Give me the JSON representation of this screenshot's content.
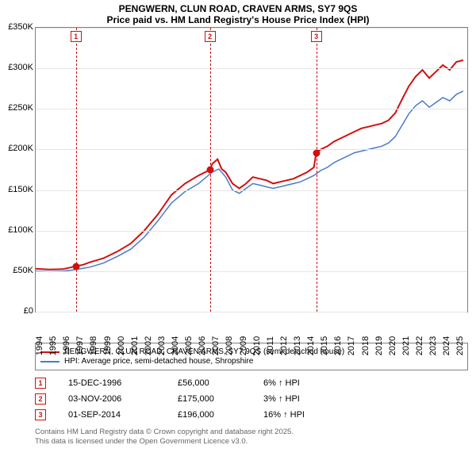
{
  "title": {
    "line1": "PENGWERN, CLUN ROAD, CRAVEN ARMS, SY7 9QS",
    "line2": "Price paid vs. HM Land Registry's House Price Index (HPI)"
  },
  "chart": {
    "type": "line",
    "background_color": "#ffffff",
    "grid_color": "#e5e5e5",
    "border_color": "#808080",
    "xlim": [
      1994,
      2025.8
    ],
    "ylim": [
      0,
      350000
    ],
    "yticks": [
      0,
      50000,
      100000,
      150000,
      200000,
      250000,
      300000,
      350000
    ],
    "ytick_labels": [
      "£0",
      "£50K",
      "£100K",
      "£150K",
      "£200K",
      "£250K",
      "£300K",
      "£350K"
    ],
    "xticks": [
      1994,
      1995,
      1996,
      1997,
      1998,
      1999,
      2000,
      2001,
      2002,
      2003,
      2004,
      2005,
      2006,
      2007,
      2008,
      2009,
      2010,
      2011,
      2012,
      2013,
      2014,
      2015,
      2016,
      2017,
      2018,
      2019,
      2020,
      2021,
      2022,
      2023,
      2024,
      2025
    ],
    "series": [
      {
        "name": "price_paid",
        "label": "PENGWERN, CLUN ROAD, CRAVEN ARMS, SY7 9QS (semi-detached house)",
        "color": "#d01010",
        "line_width": 2,
        "data": [
          [
            1994,
            53000
          ],
          [
            1995,
            52000
          ],
          [
            1996,
            52500
          ],
          [
            1996.96,
            56000
          ],
          [
            1997.5,
            58000
          ],
          [
            1998,
            61000
          ],
          [
            1999,
            66000
          ],
          [
            2000,
            74000
          ],
          [
            2001,
            84000
          ],
          [
            2002,
            100000
          ],
          [
            2003,
            120000
          ],
          [
            2004,
            144000
          ],
          [
            2005,
            158000
          ],
          [
            2006,
            168000
          ],
          [
            2006.84,
            175000
          ],
          [
            2007,
            182000
          ],
          [
            2007.4,
            188000
          ],
          [
            2007.7,
            176000
          ],
          [
            2008,
            172000
          ],
          [
            2008.5,
            158000
          ],
          [
            2009,
            152000
          ],
          [
            2009.5,
            158000
          ],
          [
            2010,
            166000
          ],
          [
            2010.5,
            164000
          ],
          [
            2011,
            162000
          ],
          [
            2011.5,
            158000
          ],
          [
            2012,
            160000
          ],
          [
            2012.5,
            162000
          ],
          [
            2013,
            164000
          ],
          [
            2013.5,
            168000
          ],
          [
            2014,
            172000
          ],
          [
            2014.5,
            178000
          ],
          [
            2014.67,
            196000
          ],
          [
            2015,
            200000
          ],
          [
            2015.5,
            204000
          ],
          [
            2016,
            210000
          ],
          [
            2016.5,
            214000
          ],
          [
            2017,
            218000
          ],
          [
            2017.5,
            222000
          ],
          [
            2018,
            226000
          ],
          [
            2018.5,
            228000
          ],
          [
            2019,
            230000
          ],
          [
            2019.5,
            232000
          ],
          [
            2020,
            236000
          ],
          [
            2020.5,
            245000
          ],
          [
            2021,
            262000
          ],
          [
            2021.5,
            278000
          ],
          [
            2022,
            290000
          ],
          [
            2022.5,
            298000
          ],
          [
            2023,
            288000
          ],
          [
            2023.5,
            296000
          ],
          [
            2024,
            304000
          ],
          [
            2024.5,
            298000
          ],
          [
            2025,
            308000
          ],
          [
            2025.5,
            310000
          ]
        ]
      },
      {
        "name": "hpi",
        "label": "HPI: Average price, semi-detached house, Shropshire",
        "color": "#4a7bc8",
        "line_width": 1.5,
        "data": [
          [
            1994,
            50000
          ],
          [
            1995,
            49500
          ],
          [
            1996,
            50000
          ],
          [
            1997,
            52000
          ],
          [
            1998,
            55000
          ],
          [
            1999,
            60000
          ],
          [
            2000,
            68000
          ],
          [
            2001,
            77000
          ],
          [
            2002,
            92000
          ],
          [
            2003,
            112000
          ],
          [
            2004,
            134000
          ],
          [
            2005,
            148000
          ],
          [
            2006,
            158000
          ],
          [
            2007,
            172000
          ],
          [
            2007.5,
            176000
          ],
          [
            2008,
            166000
          ],
          [
            2008.5,
            150000
          ],
          [
            2009,
            146000
          ],
          [
            2009.5,
            152000
          ],
          [
            2010,
            158000
          ],
          [
            2010.5,
            156000
          ],
          [
            2011,
            154000
          ],
          [
            2011.5,
            152000
          ],
          [
            2012,
            154000
          ],
          [
            2013,
            158000
          ],
          [
            2013.5,
            160000
          ],
          [
            2014,
            164000
          ],
          [
            2014.5,
            168000
          ],
          [
            2015,
            174000
          ],
          [
            2015.5,
            178000
          ],
          [
            2016,
            184000
          ],
          [
            2016.5,
            188000
          ],
          [
            2017,
            192000
          ],
          [
            2017.5,
            196000
          ],
          [
            2018,
            198000
          ],
          [
            2018.5,
            200000
          ],
          [
            2019,
            202000
          ],
          [
            2019.5,
            204000
          ],
          [
            2020,
            208000
          ],
          [
            2020.5,
            216000
          ],
          [
            2021,
            230000
          ],
          [
            2021.5,
            244000
          ],
          [
            2022,
            254000
          ],
          [
            2022.5,
            260000
          ],
          [
            2023,
            252000
          ],
          [
            2023.5,
            258000
          ],
          [
            2024,
            264000
          ],
          [
            2024.5,
            260000
          ],
          [
            2025,
            268000
          ],
          [
            2025.5,
            272000
          ]
        ]
      }
    ],
    "markers": [
      {
        "n": "1",
        "x": 1996.96,
        "y": 56000
      },
      {
        "n": "2",
        "x": 2006.84,
        "y": 175000
      },
      {
        "n": "3",
        "x": 2014.67,
        "y": 196000
      }
    ]
  },
  "legend": {
    "item1_label": "PENGWERN, CLUN ROAD, CRAVEN ARMS, SY7 9QS (semi-detached house)",
    "item1_color": "#d01010",
    "item2_label": "HPI: Average price, semi-detached house, Shropshire",
    "item2_color": "#4a7bc8"
  },
  "sales": [
    {
      "n": "1",
      "date": "15-DEC-1996",
      "price": "£56,000",
      "delta": "6% ↑ HPI"
    },
    {
      "n": "2",
      "date": "03-NOV-2006",
      "price": "£175,000",
      "delta": "3% ↑ HPI"
    },
    {
      "n": "3",
      "date": "01-SEP-2014",
      "price": "£196,000",
      "delta": "16% ↑ HPI"
    }
  ],
  "footer": {
    "line1": "Contains HM Land Registry data © Crown copyright and database right 2025.",
    "line2": "This data is licensed under the Open Government Licence v3.0."
  }
}
